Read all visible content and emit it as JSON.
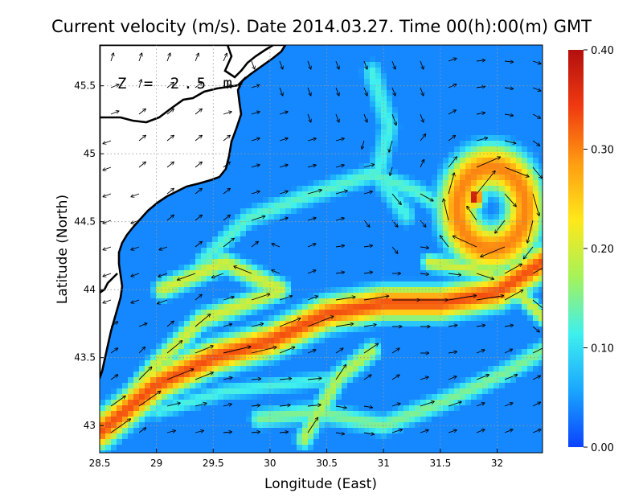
{
  "chart_data": {
    "type": "heatmap",
    "title": "Current velocity (m/s). Date 2014.03.27. Time 00(h):00(m) GMT",
    "xlabel": "Longitude (East)",
    "ylabel": "Latitude (North)",
    "annotation": "Z = 2.5 m",
    "xlim": [
      28.5,
      32.4
    ],
    "ylim": [
      42.8,
      45.8
    ],
    "xticks": [
      28.5,
      29,
      29.5,
      30,
      30.5,
      31,
      31.5,
      32
    ],
    "xtick_labels": [
      "28.5",
      "29",
      "29.5",
      "30",
      "30.5",
      "31",
      "31.5",
      "32"
    ],
    "yticks": [
      43,
      43.5,
      44,
      44.5,
      45,
      45.5
    ],
    "ytick_labels": [
      "43",
      "43.5",
      "44",
      "44.5",
      "45",
      "45.5"
    ],
    "grid": true,
    "colorbar": {
      "min": 0.0,
      "max": 0.4,
      "ticks": [
        0.0,
        0.1,
        0.2,
        0.3,
        0.4
      ],
      "tick_labels": [
        "0.00",
        "0.10",
        "0.20",
        "0.30",
        "0.40"
      ],
      "colors": [
        "#0b42ff",
        "#1aa6ff",
        "#3ff0ee",
        "#a6f25a",
        "#ffe81a",
        "#ff9c12",
        "#f03a10",
        "#b30f0f"
      ]
    },
    "fields": {
      "background_speed": 0.04,
      "current_jets": [
        {
          "path_lon_lat": [
            [
              28.5,
              42.95
            ],
            [
              29.0,
              43.3
            ],
            [
              29.5,
              43.5
            ],
            [
              30.0,
              43.62
            ],
            [
              30.5,
              43.82
            ],
            [
              31.0,
              43.9
            ],
            [
              31.5,
              43.9
            ],
            [
              32.0,
              43.98
            ],
            [
              32.4,
              44.2
            ]
          ],
          "speed": 0.33,
          "width_deg": 0.09
        },
        {
          "path_lon_lat": [
            [
              28.6,
              43.05
            ],
            [
              29.0,
              43.45
            ],
            [
              29.4,
              43.78
            ],
            [
              29.8,
              43.9
            ],
            [
              30.1,
              44.0
            ],
            [
              29.6,
              44.2
            ],
            [
              29.05,
              44.0
            ]
          ],
          "speed": 0.2,
          "width_deg": 0.06
        },
        {
          "path_lon_lat": [
            [
              29.4,
              44.2
            ],
            [
              29.8,
              44.52
            ],
            [
              30.3,
              44.68
            ],
            [
              30.9,
              44.85
            ],
            [
              31.3,
              44.72
            ],
            [
              31.7,
              44.5
            ]
          ],
          "speed": 0.13,
          "width_deg": 0.06
        },
        {
          "path_lon_lat": [
            [
              30.9,
              45.6
            ],
            [
              31.05,
              45.2
            ],
            [
              30.95,
              44.85
            ],
            [
              31.2,
              44.55
            ]
          ],
          "speed": 0.12,
          "width_deg": 0.07
        },
        {
          "path_lon_lat": [
            [
              29.9,
              43.05
            ],
            [
              30.4,
              43.1
            ],
            [
              31.0,
              43.0
            ],
            [
              31.6,
              43.2
            ],
            [
              32.1,
              43.4
            ],
            [
              32.4,
              43.55
            ]
          ],
          "speed": 0.15,
          "width_deg": 0.06
        },
        {
          "path_lon_lat": [
            [
              30.3,
              42.9
            ],
            [
              30.6,
              43.35
            ],
            [
              30.9,
              43.55
            ]
          ],
          "speed": 0.18,
          "width_deg": 0.06
        },
        {
          "path_lon_lat": [
            [
              31.4,
              44.2
            ],
            [
              31.8,
              44.15
            ],
            [
              32.1,
              44.05
            ],
            [
              32.4,
              43.8
            ]
          ],
          "speed": 0.2,
          "width_deg": 0.05
        },
        {
          "path_lon_lat": [
            [
              29.0,
              43.1
            ],
            [
              29.6,
              43.25
            ],
            [
              30.1,
              43.3
            ],
            [
              30.6,
              43.35
            ]
          ],
          "speed": 0.12,
          "width_deg": 0.05
        }
      ],
      "eddy": {
        "center_lon_lat": [
          31.95,
          44.6
        ],
        "radius_deg": 0.3,
        "ring_width_deg": 0.13,
        "speed": 0.3,
        "core_lon_lat": [
          31.8,
          44.68
        ],
        "core_speed": 0.4
      }
    }
  }
}
